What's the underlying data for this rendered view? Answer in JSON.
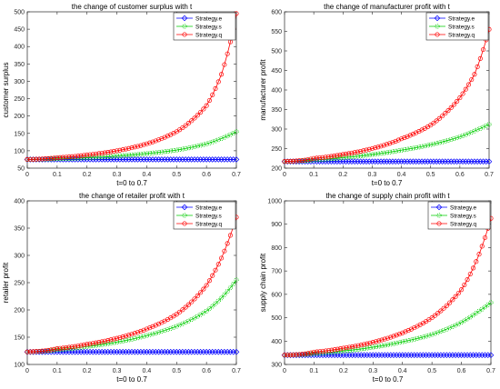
{
  "figure": {
    "background": "#ffffff",
    "series_styles": [
      {
        "key": "e",
        "color": "#0000ff",
        "marker": "diamond"
      },
      {
        "key": "s",
        "color": "#00cc00",
        "marker": "circle-dotted"
      },
      {
        "key": "q",
        "color": "#ff0000",
        "marker": "circle"
      }
    ]
  },
  "chart_data": [
    {
      "type": "line",
      "title": "the change of customer surplus with t",
      "xlabel": "t=0 to 0.7",
      "ylabel": "customer surplus",
      "xlim": [
        0,
        0.7
      ],
      "ylim": [
        50,
        500
      ],
      "xticks": [
        "0",
        "0.1",
        "0.2",
        "0.3",
        "0.4",
        "0.5",
        "0.6",
        "0.7"
      ],
      "yticks": [
        "50",
        "100",
        "150",
        "200",
        "250",
        "300",
        "350",
        "400",
        "450",
        "500"
      ],
      "legend_position": "top-right",
      "x": [
        0,
        0.1,
        0.2,
        0.3,
        0.4,
        0.5,
        0.6,
        0.65,
        0.7
      ],
      "series": [
        {
          "name": "Strategy.e",
          "values": [
            75,
            75,
            75,
            75,
            75,
            75,
            75,
            75,
            75
          ]
        },
        {
          "name": "Strategy.s",
          "values": [
            75,
            77,
            80,
            85,
            92,
            102,
            120,
            135,
            155
          ]
        },
        {
          "name": "Strategy.q",
          "values": [
            75,
            80,
            88,
            100,
            120,
            155,
            230,
            320,
            495
          ]
        }
      ]
    },
    {
      "type": "line",
      "title": "the change of manufacturer profit with t",
      "xlabel": "t=0 to 0.7",
      "ylabel": "manufacturer profit",
      "xlim": [
        0,
        0.7
      ],
      "ylim": [
        200,
        600
      ],
      "xticks": [
        "0",
        "0.1",
        "0.2",
        "0.3",
        "0.4",
        "0.5",
        "0.6",
        "0.7"
      ],
      "yticks": [
        "200",
        "250",
        "300",
        "350",
        "400",
        "450",
        "500",
        "550",
        "600"
      ],
      "legend_position": "top-right",
      "x": [
        0,
        0.1,
        0.2,
        0.3,
        0.4,
        0.5,
        0.6,
        0.65,
        0.7
      ],
      "series": [
        {
          "name": "Strategy.e",
          "values": [
            217,
            217,
            217,
            217,
            217,
            217,
            217,
            217,
            217
          ]
        },
        {
          "name": "Strategy.s",
          "values": [
            217,
            221,
            227,
            235,
            246,
            260,
            280,
            295,
            312
          ]
        },
        {
          "name": "Strategy.q",
          "values": [
            217,
            225,
            235,
            250,
            275,
            310,
            380,
            440,
            555
          ]
        }
      ]
    },
    {
      "type": "line",
      "title": "the change of retailer profit with t",
      "xlabel": "t=0 to 0.7",
      "ylabel": "retailer profit",
      "xlim": [
        0,
        0.7
      ],
      "ylim": [
        100,
        400
      ],
      "xticks": [
        "0",
        "0.1",
        "0.2",
        "0.3",
        "0.4",
        "0.5",
        "0.6",
        "0.7"
      ],
      "yticks": [
        "100",
        "150",
        "200",
        "250",
        "300",
        "350",
        "400"
      ],
      "legend_position": "top-right",
      "x": [
        0,
        0.1,
        0.2,
        0.3,
        0.4,
        0.5,
        0.6,
        0.65,
        0.7
      ],
      "series": [
        {
          "name": "Strategy.e",
          "values": [
            123,
            123,
            123,
            123,
            123,
            123,
            123,
            123,
            123
          ]
        },
        {
          "name": "Strategy.s",
          "values": [
            123,
            127,
            133,
            141,
            153,
            170,
            198,
            222,
            255
          ]
        },
        {
          "name": "Strategy.q",
          "values": [
            123,
            129,
            137,
            148,
            165,
            192,
            245,
            295,
            370
          ]
        }
      ]
    },
    {
      "type": "line",
      "title": "the change of supply chain profit with t",
      "xlabel": "t=0 to 0.7",
      "ylabel": "supply chain profit",
      "xlim": [
        0,
        0.7
      ],
      "ylim": [
        300,
        1000
      ],
      "xticks": [
        "0",
        "0.1",
        "0.2",
        "0.3",
        "0.4",
        "0.5",
        "0.6",
        "0.7"
      ],
      "yticks": [
        "300",
        "400",
        "500",
        "600",
        "700",
        "800",
        "900",
        "1000"
      ],
      "legend_position": "top-right",
      "x": [
        0,
        0.1,
        0.2,
        0.3,
        0.4,
        0.5,
        0.6,
        0.65,
        0.7
      ],
      "series": [
        {
          "name": "Strategy.e",
          "values": [
            340,
            340,
            340,
            340,
            340,
            340,
            340,
            340,
            340
          ]
        },
        {
          "name": "Strategy.s",
          "values": [
            340,
            347,
            358,
            374,
            397,
            428,
            480,
            520,
            565
          ]
        },
        {
          "name": "Strategy.q",
          "values": [
            340,
            353,
            370,
            395,
            435,
            500,
            620,
            740,
            925
          ]
        }
      ]
    }
  ]
}
